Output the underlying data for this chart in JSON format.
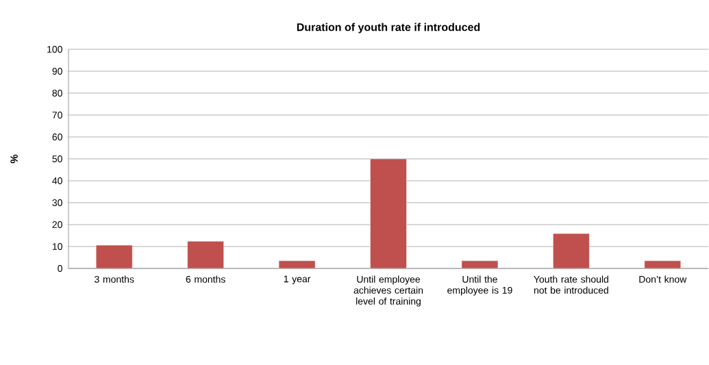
{
  "chart_data": {
    "type": "bar",
    "title": "Duration of youth rate if introduced",
    "ylabel": "%",
    "categories": [
      "3 months",
      "6 months",
      "1 year",
      "Until employee achieves certain level of training",
      "Until the employee is 19",
      "Youth rate should not be introduced",
      "Don’t know"
    ],
    "values": [
      10.6,
      12.4,
      3.5,
      50,
      3.5,
      15.9,
      3.5
    ],
    "color": "#c0504d",
    "ylim": [
      0,
      100
    ],
    "yticks": [
      0,
      10,
      20,
      30,
      40,
      50,
      60,
      70,
      80,
      90,
      100
    ],
    "grid": "y"
  }
}
